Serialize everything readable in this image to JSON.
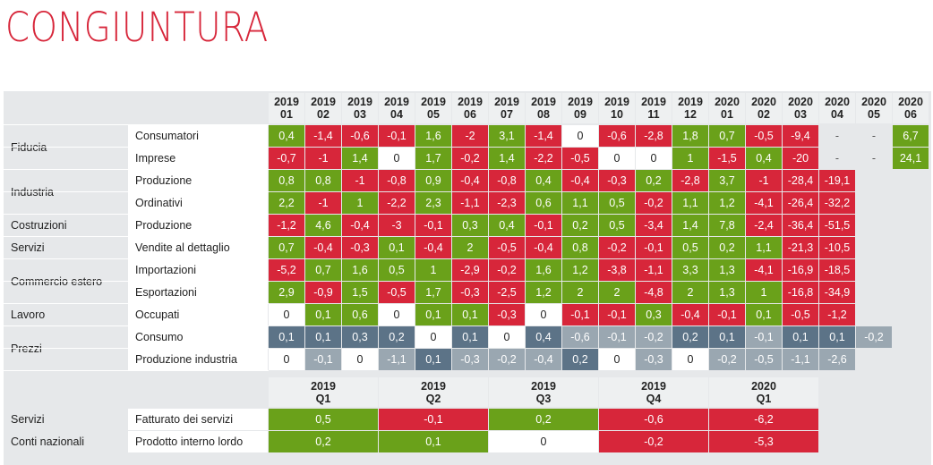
{
  "title": "CONGIUNTURA",
  "monthly": {
    "years": [
      "2019",
      "2019",
      "2019",
      "2019",
      "2019",
      "2019",
      "2019",
      "2019",
      "2019",
      "2019",
      "2019",
      "2019",
      "2020",
      "2020",
      "2020",
      "2020",
      "2020",
      "2020"
    ],
    "months": [
      "01",
      "02",
      "03",
      "04",
      "05",
      "06",
      "07",
      "08",
      "09",
      "10",
      "11",
      "12",
      "01",
      "02",
      "03",
      "04",
      "05",
      "06"
    ],
    "groups": [
      {
        "label": "Fiducia",
        "rows": [
          {
            "label": "Consumatori",
            "values": [
              "0,4",
              "-1,4",
              "-0,6",
              "-0,1",
              "1,6",
              "-2",
              "3,1",
              "-1,4",
              "0",
              "-0,6",
              "-2,8",
              "1,8",
              "0,7",
              "-0,5",
              "-9,4",
              "-",
              "-",
              "6,7"
            ],
            "colors": [
              "green",
              "red",
              "red",
              "red",
              "green",
              "red",
              "green",
              "red",
              "white",
              "red",
              "red",
              "green",
              "green",
              "red",
              "red",
              "dash",
              "dash",
              "green"
            ]
          },
          {
            "label": "Imprese",
            "values": [
              "-0,7",
              "-1",
              "1,4",
              "0",
              "1,7",
              "-0,2",
              "1,4",
              "-2,2",
              "-0,5",
              "0",
              "0",
              "1",
              "-1,5",
              "0,4",
              "-20",
              "-",
              "-",
              "24,1"
            ],
            "colors": [
              "red",
              "red",
              "green",
              "white",
              "green",
              "red",
              "green",
              "red",
              "red",
              "white",
              "white",
              "green",
              "red",
              "green",
              "red",
              "dash",
              "dash",
              "green"
            ]
          }
        ]
      },
      {
        "label": "Industria",
        "rows": [
          {
            "label": "Produzione",
            "values": [
              "0,8",
              "0,8",
              "-1",
              "-0,8",
              "0,9",
              "-0,4",
              "-0,8",
              "0,4",
              "-0,4",
              "-0,3",
              "0,2",
              "-2,8",
              "3,7",
              "-1",
              "-28,4",
              "-19,1",
              "",
              ""
            ],
            "colors": [
              "green",
              "green",
              "red",
              "red",
              "green",
              "red",
              "red",
              "green",
              "red",
              "red",
              "green",
              "red",
              "green",
              "red",
              "red",
              "red",
              "empty",
              "empty"
            ]
          },
          {
            "label": "Ordinativi",
            "values": [
              "2,2",
              "-1",
              "1",
              "-2,2",
              "2,3",
              "-1,1",
              "-2,3",
              "0,6",
              "1,1",
              "0,5",
              "-0,2",
              "1,1",
              "1,2",
              "-4,1",
              "-26,4",
              "-32,2",
              "",
              ""
            ],
            "colors": [
              "green",
              "red",
              "green",
              "red",
              "green",
              "red",
              "red",
              "green",
              "green",
              "green",
              "red",
              "green",
              "green",
              "red",
              "red",
              "red",
              "empty",
              "empty"
            ]
          }
        ]
      },
      {
        "label": "Costruzioni",
        "rows": [
          {
            "label": "Produzione",
            "values": [
              "-1,2",
              "4,6",
              "-0,4",
              "-3",
              "-0,1",
              "0,3",
              "0,4",
              "-0,1",
              "0,2",
              "0,5",
              "-3,4",
              "1,4",
              "7,8",
              "-2,4",
              "-36,4",
              "-51,5",
              "",
              ""
            ],
            "colors": [
              "red",
              "green",
              "red",
              "red",
              "red",
              "green",
              "green",
              "red",
              "green",
              "green",
              "red",
              "green",
              "green",
              "red",
              "red",
              "red",
              "empty",
              "empty"
            ]
          }
        ]
      },
      {
        "label": "Servizi",
        "rows": [
          {
            "label": "Vendite al dettaglio",
            "values": [
              "0,7",
              "-0,4",
              "-0,3",
              "0,1",
              "-0,4",
              "2",
              "-0,5",
              "-0,4",
              "0,8",
              "-0,2",
              "-0,1",
              "0,5",
              "0,2",
              "1,1",
              "-21,3",
              "-10,5",
              "",
              ""
            ],
            "colors": [
              "green",
              "red",
              "red",
              "green",
              "red",
              "green",
              "red",
              "red",
              "green",
              "red",
              "red",
              "green",
              "green",
              "green",
              "red",
              "red",
              "empty",
              "empty"
            ]
          }
        ]
      },
      {
        "label": "Commercio estero",
        "rows": [
          {
            "label": "Importazioni",
            "values": [
              "-5,2",
              "0,7",
              "1,6",
              "0,5",
              "1",
              "-2,9",
              "-0,2",
              "1,6",
              "1,2",
              "-3,8",
              "-1,1",
              "3,3",
              "1,3",
              "-4,1",
              "-16,9",
              "-18,5",
              "",
              ""
            ],
            "colors": [
              "red",
              "green",
              "green",
              "green",
              "green",
              "red",
              "red",
              "green",
              "green",
              "red",
              "red",
              "green",
              "green",
              "red",
              "red",
              "red",
              "empty",
              "empty"
            ]
          },
          {
            "label": "Esportazioni",
            "values": [
              "2,9",
              "-0,9",
              "1,5",
              "-0,5",
              "1,7",
              "-0,3",
              "-2,5",
              "1,2",
              "2",
              "2",
              "-4,8",
              "2",
              "1,3",
              "1",
              "-16,8",
              "-34,9",
              "",
              ""
            ],
            "colors": [
              "green",
              "red",
              "green",
              "red",
              "green",
              "red",
              "red",
              "green",
              "green",
              "green",
              "red",
              "green",
              "green",
              "green",
              "red",
              "red",
              "empty",
              "empty"
            ]
          }
        ]
      },
      {
        "label": "Lavoro",
        "rows": [
          {
            "label": "Occupati",
            "values": [
              "0",
              "0,1",
              "0,6",
              "0",
              "0,1",
              "0,1",
              "-0,3",
              "0",
              "-0,1",
              "-0,1",
              "0,3",
              "-0,4",
              "-0,1",
              "0,1",
              "-0,5",
              "-1,2",
              "",
              ""
            ],
            "colors": [
              "white",
              "green",
              "green",
              "white",
              "green",
              "green",
              "red",
              "white",
              "red",
              "red",
              "green",
              "red",
              "red",
              "green",
              "red",
              "red",
              "empty",
              "empty"
            ]
          }
        ]
      },
      {
        "label": "Prezzi",
        "rows": [
          {
            "label": "Consumo",
            "values": [
              "0,1",
              "0,1",
              "0,3",
              "0,2",
              "0",
              "0,1",
              "0",
              "0,4",
              "-0,6",
              "-0,1",
              "-0,2",
              "0,2",
              "0,1",
              "-0,1",
              "0,1",
              "0,1",
              "-0,2",
              ""
            ],
            "colors": [
              "slate",
              "slate",
              "slate",
              "slate",
              "white",
              "slate",
              "white",
              "slate",
              "grey",
              "grey",
              "grey",
              "slate",
              "slate",
              "grey",
              "slate",
              "slate",
              "grey",
              "empty"
            ]
          },
          {
            "label": "Produzione industria",
            "values": [
              "0",
              "-0,1",
              "0",
              "-1,1",
              "0,1",
              "-0,3",
              "-0,2",
              "-0,4",
              "0,2",
              "0",
              "-0,3",
              "0",
              "-0,2",
              "-0,5",
              "-1,1",
              "-2,6",
              "",
              ""
            ],
            "colors": [
              "white",
              "grey",
              "white",
              "grey",
              "slate",
              "grey",
              "grey",
              "grey",
              "slate",
              "white",
              "grey",
              "white",
              "grey",
              "grey",
              "grey",
              "grey",
              "empty",
              "empty"
            ]
          }
        ]
      }
    ]
  },
  "quarterly": {
    "years": [
      "2019",
      "2019",
      "2019",
      "2019",
      "2020"
    ],
    "quarters": [
      "Q1",
      "Q2",
      "Q3",
      "Q4",
      "Q1"
    ],
    "rows": [
      {
        "group": "Servizi",
        "label": "Fatturato dei servizi",
        "values": [
          "0,5",
          "-0,1",
          "0,2",
          "-0,6",
          "-6,2"
        ],
        "colors": [
          "green",
          "red",
          "green",
          "red",
          "red"
        ]
      },
      {
        "group": "Conti nazionali",
        "label": "Prodotto interno lordo",
        "values": [
          "0,2",
          "0,1",
          "0",
          "-0,2",
          "-5,3"
        ],
        "colors": [
          "green",
          "green",
          "white",
          "red",
          "red"
        ]
      }
    ]
  }
}
